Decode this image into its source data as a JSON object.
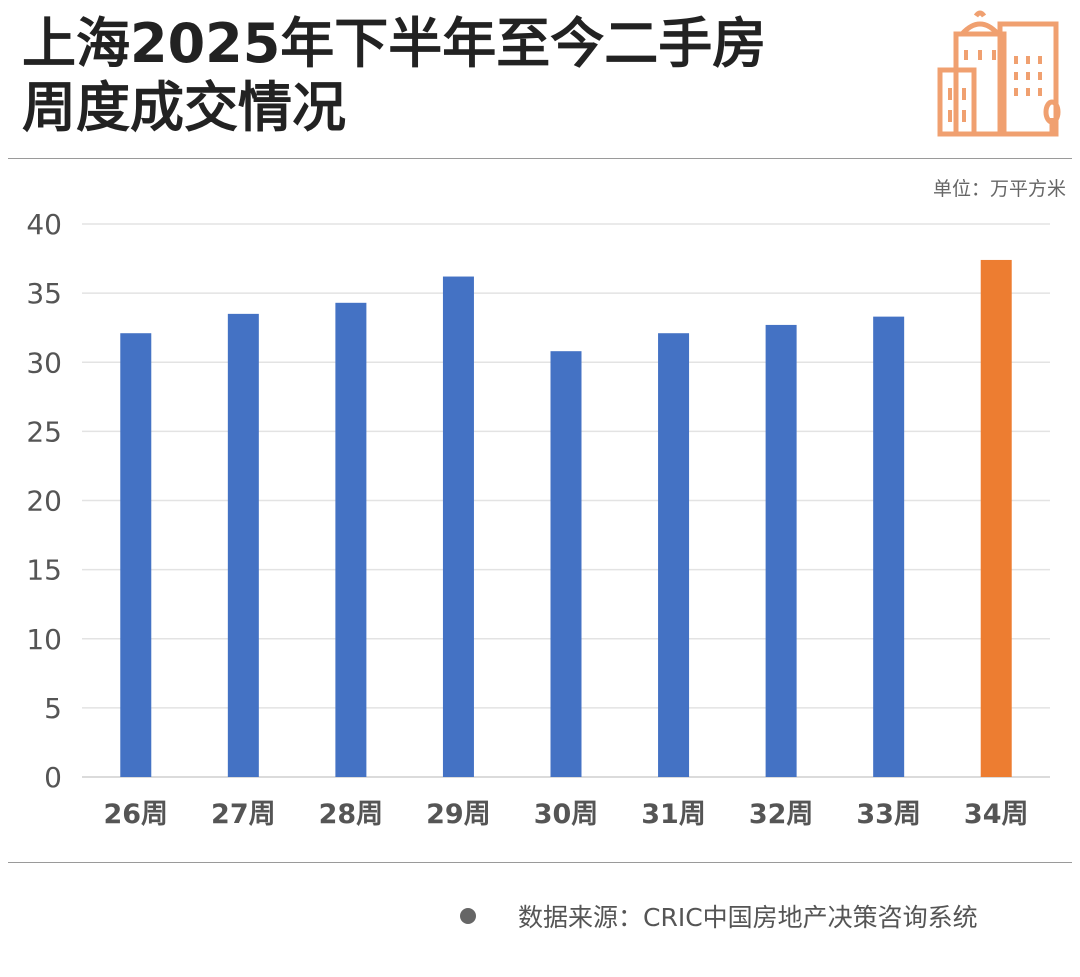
{
  "title_lines": [
    "上海2025年下半年至今二手房",
    "周度成交情况"
  ],
  "unit_label": "单位：万平方米",
  "source_label": "数据来源：CRIC中国房地产决策咨询系统",
  "colors": {
    "bar_default": "#4472C4",
    "bar_highlight": "#ED7D31",
    "icon_orange": "#F0A070",
    "title": "#222222"
  },
  "chart_data": {
    "type": "bar",
    "categories": [
      "26周",
      "27周",
      "28周",
      "29周",
      "30周",
      "31周",
      "32周",
      "33周",
      "34周"
    ],
    "values": [
      32.1,
      33.5,
      34.3,
      36.2,
      30.8,
      32.1,
      32.7,
      33.3,
      37.4
    ],
    "highlight_index": 8,
    "yticks": [
      0,
      5,
      10,
      15,
      20,
      25,
      30,
      35,
      40
    ],
    "ylim": [
      0,
      40
    ],
    "grid": true
  }
}
